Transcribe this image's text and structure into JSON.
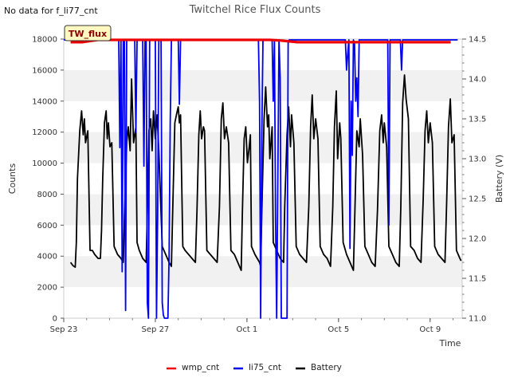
{
  "chart_data": {
    "type": "line",
    "title": "Twitchel Rice Flux Counts",
    "no_data_note": "No data for f_li77_cnt",
    "site_badge": "TW_flux",
    "xlabel": "Time",
    "ylabel": "Counts",
    "y2label": "Battery (V)",
    "x_range_days": [
      0,
      17.4
    ],
    "x_ticks": [
      {
        "day": 0,
        "label": "Sep 23"
      },
      {
        "day": 4,
        "label": "Sep 27"
      },
      {
        "day": 8,
        "label": "Oct 1"
      },
      {
        "day": 12,
        "label": "Oct 5"
      },
      {
        "day": 16,
        "label": "Oct 9"
      }
    ],
    "ylim": [
      0,
      18000
    ],
    "y_ticks": [
      0,
      2000,
      4000,
      6000,
      8000,
      10000,
      12000,
      14000,
      16000,
      18000
    ],
    "y2lim": [
      11.0,
      14.5
    ],
    "y2_ticks": [
      11.0,
      11.5,
      12.0,
      12.5,
      13.0,
      13.5,
      14.0,
      14.5
    ],
    "grid_bands": true,
    "legend_position": "bottom",
    "legend": [
      {
        "name": "wmp_cnt",
        "color": "#ee0000"
      },
      {
        "name": "li75_cnt",
        "color": "#0000ee"
      },
      {
        "name": "Battery",
        "color": "#000000"
      }
    ],
    "series": [
      {
        "name": "wmp_cnt",
        "axis": "left",
        "color": "#ee0000",
        "points": [
          [
            0.3,
            17800
          ],
          [
            0.8,
            17800
          ],
          [
            1.5,
            17950
          ],
          [
            2.2,
            17950
          ],
          [
            2.9,
            17950
          ],
          [
            3.5,
            17950
          ],
          [
            4.2,
            17950
          ],
          [
            4.9,
            17950
          ],
          [
            5.5,
            17950
          ],
          [
            6.2,
            17950
          ],
          [
            6.9,
            17950
          ],
          [
            7.5,
            17950
          ],
          [
            8.2,
            17950
          ],
          [
            9.0,
            17950
          ],
          [
            9.5,
            17900
          ],
          [
            10.2,
            17800
          ],
          [
            10.8,
            17800
          ],
          [
            11.5,
            17800
          ],
          [
            12.2,
            17800
          ],
          [
            12.8,
            17800
          ],
          [
            13.5,
            17800
          ],
          [
            14.2,
            17800
          ],
          [
            14.8,
            17800
          ],
          [
            15.5,
            17800
          ],
          [
            16.2,
            17800
          ],
          [
            16.9,
            17800
          ]
        ]
      },
      {
        "name": "li75_cnt",
        "axis": "left",
        "color": "#0000ee",
        "points": [
          [
            0.0,
            17950
          ],
          [
            2.4,
            17950
          ],
          [
            2.45,
            11000
          ],
          [
            2.5,
            17900
          ],
          [
            2.55,
            3000
          ],
          [
            2.6,
            17950
          ],
          [
            2.65,
            17900
          ],
          [
            2.7,
            500
          ],
          [
            2.75,
            17950
          ],
          [
            3.1,
            17950
          ],
          [
            3.15,
            12000
          ],
          [
            3.2,
            17950
          ],
          [
            3.45,
            17950
          ],
          [
            3.5,
            9800
          ],
          [
            3.55,
            17950
          ],
          [
            3.6,
            17950
          ],
          [
            3.65,
            1000
          ],
          [
            3.7,
            0
          ],
          [
            3.75,
            17900
          ],
          [
            4.0,
            17950
          ],
          [
            4.05,
            0
          ],
          [
            4.1,
            6500
          ],
          [
            4.15,
            17950
          ],
          [
            4.25,
            17950
          ],
          [
            4.3,
            1000
          ],
          [
            4.35,
            200
          ],
          [
            4.4,
            0
          ],
          [
            4.55,
            0
          ],
          [
            4.6,
            4000
          ],
          [
            4.65,
            12500
          ],
          [
            4.7,
            17950
          ],
          [
            5.0,
            17950
          ],
          [
            5.05,
            13800
          ],
          [
            5.1,
            17950
          ],
          [
            8.5,
            17950
          ],
          [
            8.55,
            14000
          ],
          [
            8.6,
            0
          ],
          [
            8.65,
            12000
          ],
          [
            8.7,
            17950
          ],
          [
            9.1,
            17950
          ],
          [
            9.15,
            14000
          ],
          [
            9.2,
            17950
          ],
          [
            9.25,
            6500
          ],
          [
            9.3,
            0
          ],
          [
            9.4,
            17950
          ],
          [
            9.45,
            15500
          ],
          [
            9.5,
            0
          ],
          [
            9.75,
            0
          ],
          [
            9.8,
            17800
          ],
          [
            9.85,
            17950
          ],
          [
            12.3,
            17950
          ],
          [
            12.35,
            16000
          ],
          [
            12.4,
            17000
          ],
          [
            12.45,
            17950
          ],
          [
            12.5,
            4500
          ],
          [
            12.55,
            14000
          ],
          [
            12.6,
            10500
          ],
          [
            12.65,
            17950
          ],
          [
            12.7,
            17700
          ],
          [
            12.75,
            14000
          ],
          [
            12.8,
            15500
          ],
          [
            12.85,
            13000
          ],
          [
            12.9,
            17950
          ],
          [
            14.15,
            17950
          ],
          [
            14.2,
            6000
          ],
          [
            14.25,
            17950
          ],
          [
            14.7,
            17950
          ],
          [
            14.75,
            16000
          ],
          [
            14.8,
            17950
          ],
          [
            17.2,
            17950
          ]
        ]
      },
      {
        "name": "Battery",
        "axis": "right",
        "color": "#000000",
        "points": [
          [
            0.3,
            11.7
          ],
          [
            0.4,
            11.66
          ],
          [
            0.5,
            11.64
          ],
          [
            0.55,
            11.95
          ],
          [
            0.6,
            12.75
          ],
          [
            0.7,
            13.35
          ],
          [
            0.78,
            13.6
          ],
          [
            0.85,
            13.3
          ],
          [
            0.9,
            13.5
          ],
          [
            0.95,
            13.2
          ],
          [
            1.05,
            13.35
          ],
          [
            1.15,
            11.85
          ],
          [
            1.25,
            11.85
          ],
          [
            1.35,
            11.8
          ],
          [
            1.5,
            11.75
          ],
          [
            1.6,
            11.75
          ],
          [
            1.65,
            12.1
          ],
          [
            1.7,
            12.75
          ],
          [
            1.78,
            13.45
          ],
          [
            1.85,
            13.6
          ],
          [
            1.9,
            13.25
          ],
          [
            1.95,
            13.45
          ],
          [
            2.02,
            13.15
          ],
          [
            2.1,
            13.2
          ],
          [
            2.2,
            11.9
          ],
          [
            2.35,
            11.8
          ],
          [
            2.5,
            11.75
          ],
          [
            2.6,
            11.7
          ],
          [
            2.65,
            12.25
          ],
          [
            2.75,
            13.2
          ],
          [
            2.82,
            13.4
          ],
          [
            2.9,
            13.1
          ],
          [
            2.96,
            14.0
          ],
          [
            3.05,
            13.2
          ],
          [
            3.15,
            13.4
          ],
          [
            3.2,
            11.95
          ],
          [
            3.3,
            11.85
          ],
          [
            3.45,
            11.75
          ],
          [
            3.6,
            11.7
          ],
          [
            3.65,
            12.35
          ],
          [
            3.72,
            13.35
          ],
          [
            3.8,
            13.5
          ],
          [
            3.86,
            13.1
          ],
          [
            3.92,
            13.6
          ],
          [
            4.0,
            13.25
          ],
          [
            4.08,
            13.55
          ],
          [
            4.15,
            13.1
          ],
          [
            4.3,
            11.9
          ],
          [
            4.45,
            11.8
          ],
          [
            4.6,
            11.7
          ],
          [
            4.7,
            11.65
          ],
          [
            4.75,
            12.25
          ],
          [
            4.85,
            13.45
          ],
          [
            4.92,
            13.55
          ],
          [
            5.0,
            13.65
          ],
          [
            5.05,
            13.45
          ],
          [
            5.1,
            13.55
          ],
          [
            5.2,
            11.9
          ],
          [
            5.3,
            11.85
          ],
          [
            5.45,
            11.8
          ],
          [
            5.6,
            11.75
          ],
          [
            5.75,
            11.7
          ],
          [
            5.82,
            12.35
          ],
          [
            5.9,
            13.3
          ],
          [
            5.96,
            13.6
          ],
          [
            6.02,
            13.25
          ],
          [
            6.1,
            13.4
          ],
          [
            6.15,
            13.35
          ],
          [
            6.25,
            11.85
          ],
          [
            6.4,
            11.8
          ],
          [
            6.55,
            11.75
          ],
          [
            6.7,
            11.7
          ],
          [
            6.8,
            12.4
          ],
          [
            6.88,
            13.5
          ],
          [
            6.95,
            13.7
          ],
          [
            7.02,
            13.25
          ],
          [
            7.1,
            13.4
          ],
          [
            7.2,
            13.2
          ],
          [
            7.3,
            11.85
          ],
          [
            7.45,
            11.8
          ],
          [
            7.6,
            11.7
          ],
          [
            7.75,
            11.6
          ],
          [
            7.8,
            12.3
          ],
          [
            7.88,
            13.25
          ],
          [
            7.95,
            13.4
          ],
          [
            8.02,
            12.95
          ],
          [
            8.1,
            13.15
          ],
          [
            8.15,
            13.3
          ],
          [
            8.2,
            11.9
          ],
          [
            8.35,
            11.8
          ],
          [
            8.45,
            11.75
          ],
          [
            8.55,
            11.7
          ],
          [
            8.6,
            11.65
          ],
          [
            8.65,
            12.35
          ],
          [
            8.75,
            13.5
          ],
          [
            8.82,
            13.9
          ],
          [
            8.9,
            13.4
          ],
          [
            8.95,
            13.55
          ],
          [
            9.0,
            13.0
          ],
          [
            9.1,
            13.4
          ],
          [
            9.15,
            11.95
          ],
          [
            9.3,
            11.85
          ],
          [
            9.45,
            11.75
          ],
          [
            9.6,
            11.7
          ],
          [
            9.65,
            12.4
          ],
          [
            9.75,
            13.3
          ],
          [
            9.82,
            13.65
          ],
          [
            9.9,
            13.15
          ],
          [
            9.95,
            13.55
          ],
          [
            10.05,
            13.2
          ],
          [
            10.15,
            11.9
          ],
          [
            10.3,
            11.8
          ],
          [
            10.45,
            11.75
          ],
          [
            10.6,
            11.7
          ],
          [
            10.7,
            12.4
          ],
          [
            10.78,
            13.4
          ],
          [
            10.85,
            13.8
          ],
          [
            10.92,
            13.25
          ],
          [
            11.0,
            13.5
          ],
          [
            11.1,
            13.25
          ],
          [
            11.2,
            11.9
          ],
          [
            11.35,
            11.8
          ],
          [
            11.5,
            11.75
          ],
          [
            11.65,
            11.65
          ],
          [
            11.75,
            12.4
          ],
          [
            11.82,
            13.4
          ],
          [
            11.9,
            13.85
          ],
          [
            11.96,
            13.0
          ],
          [
            12.05,
            13.45
          ],
          [
            12.1,
            13.25
          ],
          [
            12.2,
            11.95
          ],
          [
            12.35,
            11.8
          ],
          [
            12.5,
            11.7
          ],
          [
            12.65,
            11.6
          ],
          [
            12.72,
            12.4
          ],
          [
            12.8,
            13.35
          ],
          [
            12.9,
            13.15
          ],
          [
            12.95,
            13.5
          ],
          [
            13.05,
            13.05
          ],
          [
            13.15,
            11.9
          ],
          [
            13.3,
            11.8
          ],
          [
            13.45,
            11.7
          ],
          [
            13.6,
            11.65
          ],
          [
            13.7,
            12.35
          ],
          [
            13.8,
            13.35
          ],
          [
            13.88,
            13.55
          ],
          [
            13.95,
            13.2
          ],
          [
            14.0,
            13.45
          ],
          [
            14.1,
            13.15
          ],
          [
            14.2,
            11.9
          ],
          [
            14.35,
            11.8
          ],
          [
            14.5,
            11.7
          ],
          [
            14.65,
            11.65
          ],
          [
            14.72,
            12.4
          ],
          [
            14.8,
            13.7
          ],
          [
            14.88,
            14.05
          ],
          [
            14.95,
            13.75
          ],
          [
            15.05,
            13.5
          ],
          [
            15.15,
            11.9
          ],
          [
            15.3,
            11.85
          ],
          [
            15.45,
            11.75
          ],
          [
            15.6,
            11.7
          ],
          [
            15.7,
            12.5
          ],
          [
            15.78,
            13.35
          ],
          [
            15.85,
            13.6
          ],
          [
            15.92,
            13.2
          ],
          [
            16.0,
            13.45
          ],
          [
            16.1,
            13.2
          ],
          [
            16.2,
            11.9
          ],
          [
            16.35,
            11.8
          ],
          [
            16.5,
            11.75
          ],
          [
            16.65,
            11.7
          ],
          [
            16.72,
            12.45
          ],
          [
            16.8,
            13.4
          ],
          [
            16.88,
            13.75
          ],
          [
            16.95,
            13.2
          ],
          [
            17.05,
            13.3
          ],
          [
            17.15,
            11.85
          ],
          [
            17.3,
            11.75
          ],
          [
            17.35,
            11.72
          ]
        ]
      }
    ]
  }
}
